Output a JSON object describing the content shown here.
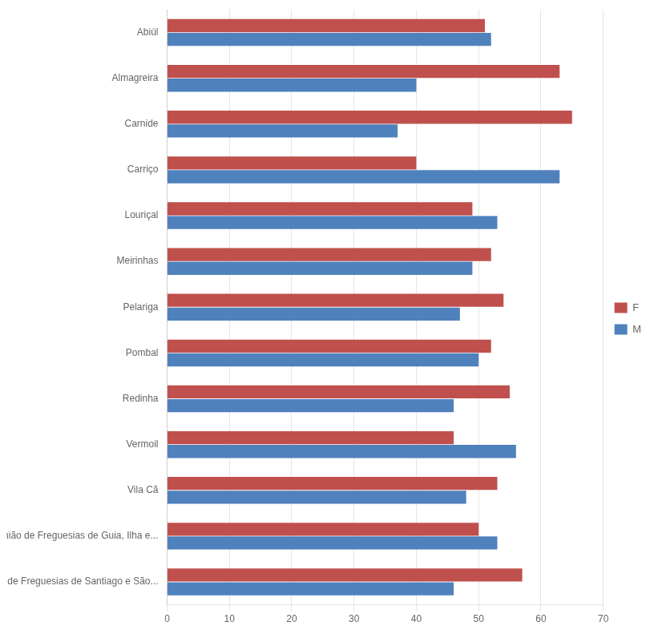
{
  "chart_data": {
    "type": "bar",
    "orientation": "horizontal",
    "categories": [
      "Abiúl",
      "Almagreira",
      "Carnide",
      "Carriço",
      "Louriçal",
      "Meirinhas",
      "Pelariga",
      "Pombal",
      "Redinha",
      "Vermoil",
      "Vila Cã",
      "União de Freguesias de Guia, Ilha e...",
      "União de Freguesias de Santiago e São..."
    ],
    "series": [
      {
        "name": "F",
        "color": "#C0504D",
        "values": [
          51,
          63,
          65,
          40,
          49,
          52,
          54,
          52,
          55,
          46,
          53,
          50,
          57
        ]
      },
      {
        "name": "M",
        "color": "#4F81BD",
        "values": [
          52,
          40,
          37,
          63,
          53,
          49,
          47,
          50,
          46,
          56,
          48,
          53,
          46
        ]
      }
    ],
    "xlim": [
      0,
      70
    ],
    "xticks": [
      0,
      10,
      20,
      30,
      40,
      50,
      60,
      70
    ],
    "grid": true,
    "legend": "right"
  }
}
